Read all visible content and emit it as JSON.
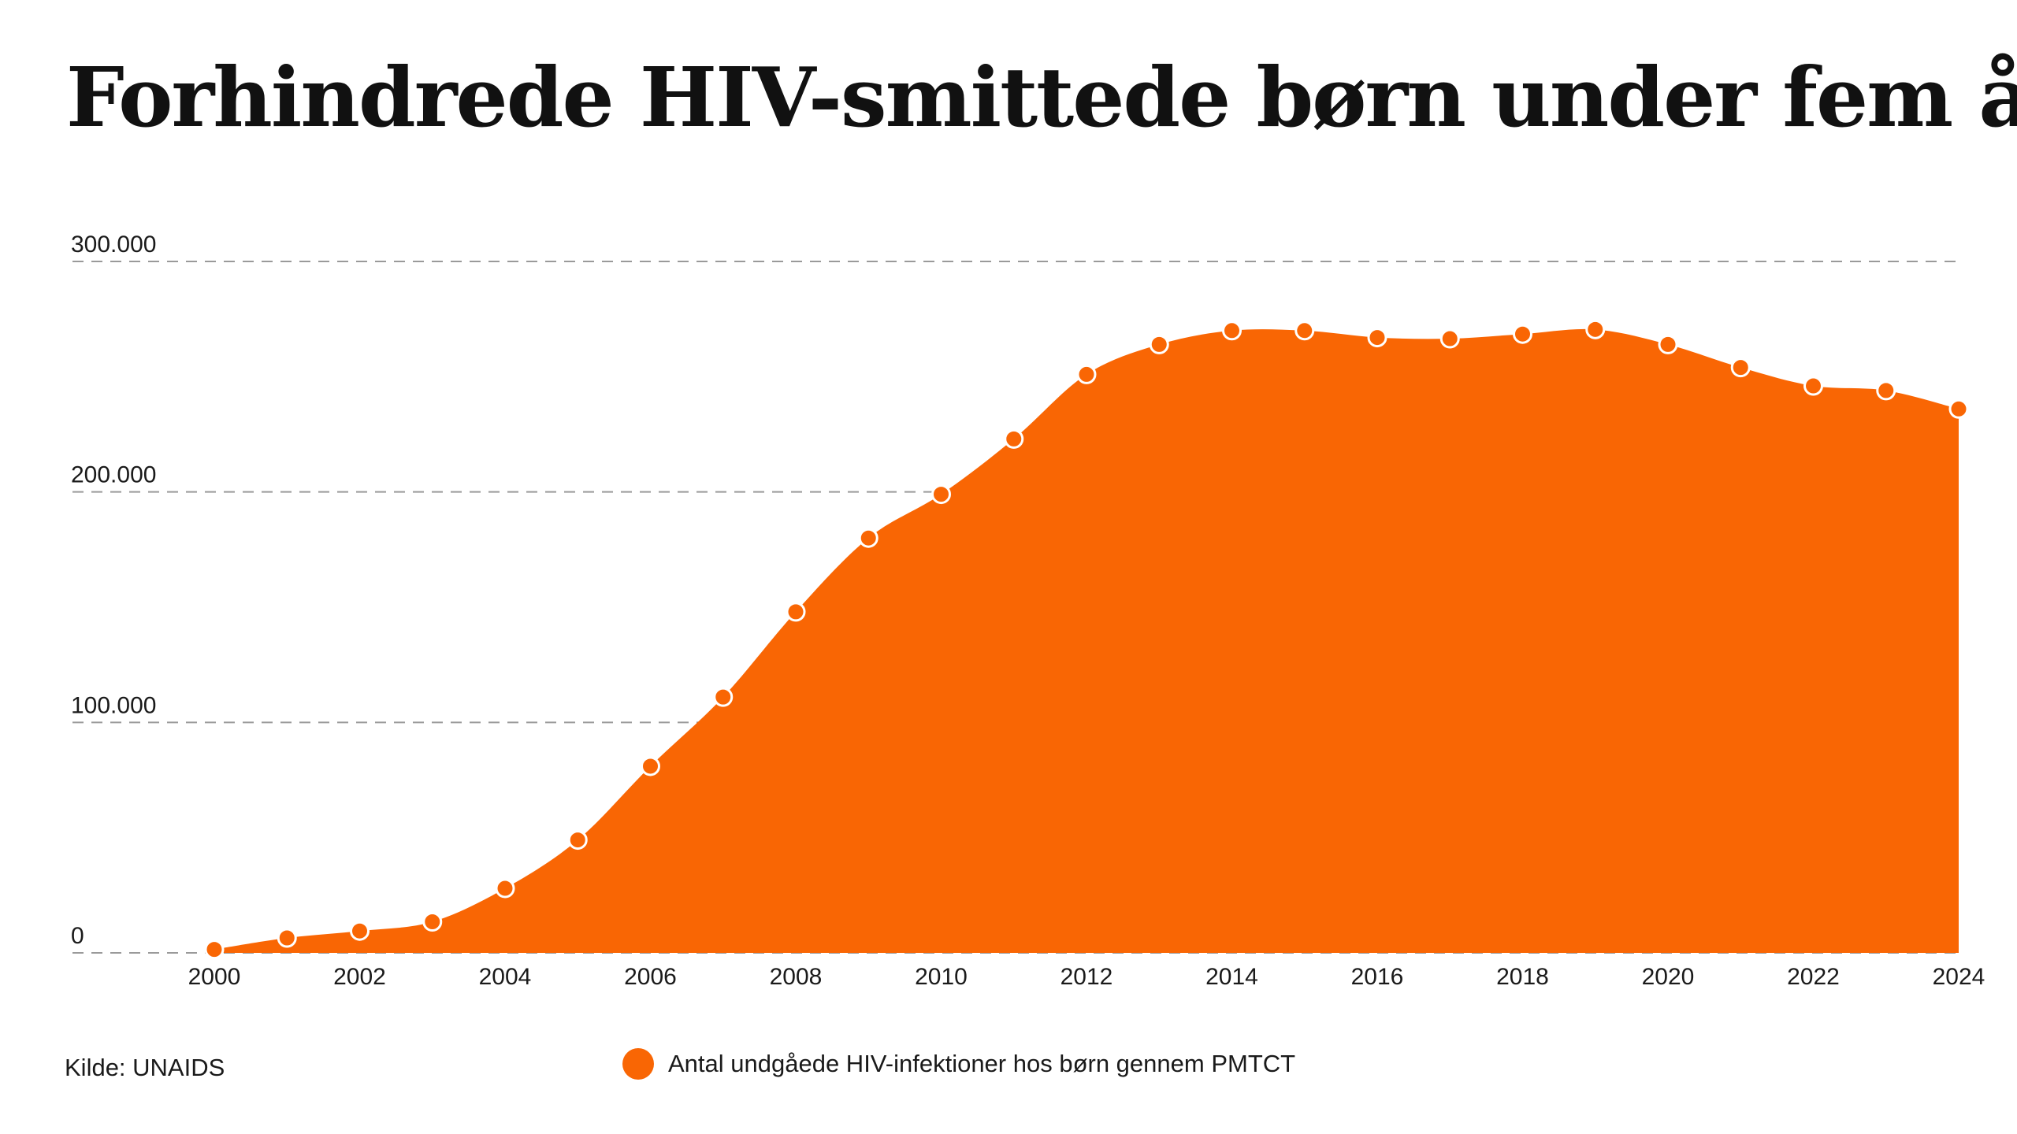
{
  "title": "Forhindrede HIV-smittede børn under fem år",
  "source": "Kilde: UNAIDS",
  "colors": {
    "area": "#f96604",
    "marker_stroke": "#ffffff",
    "grid": "#9a9a9a",
    "text": "#1a1a1a"
  },
  "chart_data": {
    "type": "area",
    "title": "Forhindrede HIV-smittede børn under fem år",
    "xlabel": "",
    "ylabel": "",
    "x": [
      2000,
      2001,
      2002,
      2003,
      2004,
      2005,
      2006,
      2007,
      2008,
      2009,
      2010,
      2011,
      2012,
      2013,
      2014,
      2015,
      2016,
      2017,
      2018,
      2019,
      2020,
      2021,
      2022,
      2023,
      2024
    ],
    "x_tick_labels": [
      "2000",
      "2002",
      "2004",
      "2006",
      "2008",
      "2010",
      "2012",
      "2014",
      "2016",
      "2018",
      "2020",
      "2022",
      "2024"
    ],
    "y_tick_labels": [
      "0",
      "100.000",
      "200.000",
      "300.000"
    ],
    "y_ticks": [
      0,
      100000,
      200000,
      300000
    ],
    "ylim": [
      0,
      300000
    ],
    "grid": true,
    "legend_position": "bottom-center",
    "series": [
      {
        "name": "Antal undgåede HIV-infektioner hos børn gennem PMTCT",
        "values": [
          1500,
          6500,
          9500,
          13500,
          28000,
          49000,
          81000,
          111000,
          148000,
          180000,
          199000,
          223000,
          251000,
          264000,
          270000,
          270000,
          267000,
          266500,
          268500,
          270500,
          264000,
          254000,
          246000,
          244000,
          236000
        ]
      }
    ]
  }
}
